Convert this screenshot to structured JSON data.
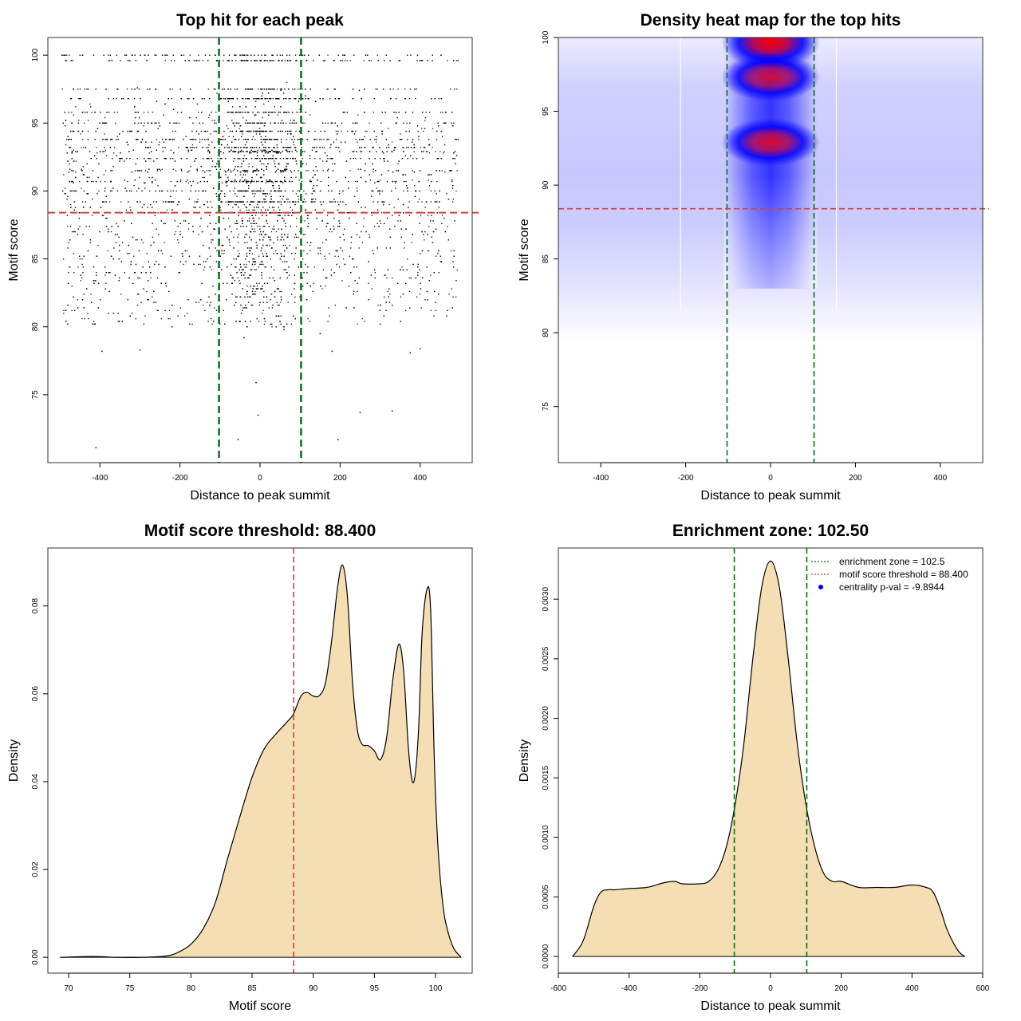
{
  "colors": {
    "green_line": "#0a6b1c",
    "red_line": "#d43f3a",
    "fill": "#f5deb3",
    "axis": "#000000",
    "point": "#000000",
    "heat_low": "#ffffff",
    "heat_mid": "#0000ff",
    "heat_high": "#ff0000",
    "legend_dot": "#0000ff"
  },
  "chart_data": [
    {
      "id": "scatter",
      "type": "scatter",
      "title": "Top hit for each peak",
      "xlabel": "Distance to peak summit",
      "ylabel": "Motif score",
      "xlim": [
        -530,
        530
      ],
      "ylim": [
        70,
        101.3
      ],
      "xticks": [
        -400,
        -200,
        0,
        200,
        400
      ],
      "yticks": [
        75,
        80,
        85,
        90,
        95,
        100
      ],
      "threshold": 88.4,
      "zone": [
        -102.5,
        102.5
      ],
      "n_points": 6000,
      "score_levels": [
        100,
        99.6,
        97.5,
        96.8,
        95.8,
        95.0,
        94.4,
        93.8,
        93.2,
        92.9,
        92.4,
        91.5,
        90.7,
        90.0,
        89.2,
        88.4
      ],
      "outliers": [
        [
          -410,
          71.1
        ],
        [
          -55,
          71.7
        ],
        [
          195,
          71.7
        ],
        [
          -5,
          73.5
        ],
        [
          250,
          73.7
        ],
        [
          330,
          73.8
        ],
        [
          -10,
          75.9
        ],
        [
          -395,
          78.2
        ],
        [
          -300,
          78.3
        ],
        [
          180,
          78.2
        ],
        [
          375,
          78.1
        ],
        [
          400,
          78.4
        ],
        [
          -220,
          80.0
        ],
        [
          -40,
          79.2
        ],
        [
          60,
          79.8
        ],
        [
          150,
          79.5
        ],
        [
          300,
          80.2
        ],
        [
          -480,
          81.6
        ],
        [
          -440,
          81.4
        ]
      ]
    },
    {
      "id": "heatmap",
      "type": "heatmap",
      "title": "Density heat map for the top hits",
      "xlabel": "Distance to peak summit",
      "ylabel": "Motif score",
      "xlim": [
        -500,
        500
      ],
      "ylim": [
        71.2,
        100
      ],
      "xticks": [
        -400,
        -200,
        0,
        200,
        400
      ],
      "yticks": [
        75,
        80,
        85,
        90,
        95,
        100
      ],
      "threshold": 88.4,
      "zone": [
        -102.5,
        102.5
      ],
      "hotspots": [
        {
          "x": 0,
          "y": 99.7,
          "intensity": 1.0
        },
        {
          "x": 0,
          "y": 97.3,
          "intensity": 0.78
        },
        {
          "x": 0,
          "y": 92.9,
          "intensity": 0.82
        }
      ]
    },
    {
      "id": "score_density",
      "type": "area",
      "title": "Motif score threshold: 88.400",
      "xlabel": "Motif score",
      "ylabel": "Density",
      "xlim": [
        68.3,
        103.0
      ],
      "ylim": [
        -0.0036,
        0.0932
      ],
      "xticks": [
        70,
        75,
        80,
        85,
        90,
        95,
        100
      ],
      "yticks": [
        0.0,
        0.02,
        0.04,
        0.06,
        0.08
      ],
      "ytick_labels": [
        "0.00",
        "0.02",
        "0.04",
        "0.06",
        "0.08"
      ],
      "threshold": 88.4,
      "x": [
        69.3,
        72.0,
        74.0,
        76.0,
        78.0,
        79.0,
        80.0,
        81.0,
        82.0,
        83.0,
        84.0,
        85.0,
        86.0,
        87.0,
        88.0,
        88.4,
        89.0,
        89.5,
        90.0,
        90.5,
        91.0,
        91.5,
        92.0,
        92.4,
        92.8,
        93.2,
        93.6,
        94.0,
        94.5,
        95.0,
        95.5,
        96.0,
        96.5,
        97.0,
        97.4,
        97.8,
        98.2,
        98.6,
        98.9,
        99.3,
        99.6,
        99.9,
        100.2,
        100.6,
        101.0,
        101.5,
        102.0,
        102.1
      ],
      "y": [
        0.0,
        0.0002,
        0.0,
        0.0,
        0.0003,
        0.0012,
        0.003,
        0.0065,
        0.0125,
        0.0225,
        0.032,
        0.041,
        0.0475,
        0.051,
        0.054,
        0.0555,
        0.0595,
        0.0603,
        0.0595,
        0.0596,
        0.0625,
        0.072,
        0.0845,
        0.0893,
        0.082,
        0.063,
        0.052,
        0.0485,
        0.0482,
        0.047,
        0.045,
        0.05,
        0.063,
        0.0713,
        0.065,
        0.047,
        0.0398,
        0.051,
        0.0735,
        0.0838,
        0.079,
        0.045,
        0.025,
        0.012,
        0.006,
        0.002,
        0.0003,
        0.0
      ]
    },
    {
      "id": "distance_density",
      "type": "area",
      "title": "Enrichment zone: 102.50",
      "xlabel": "Distance to peak summit",
      "ylabel": "Density",
      "xlim": [
        -600,
        600
      ],
      "ylim": [
        -0.00014,
        0.00343
      ],
      "xticks": [
        -600,
        -400,
        -200,
        0,
        200,
        400,
        600
      ],
      "yticks": [
        0.0,
        0.0005,
        0.001,
        0.0015,
        0.002,
        0.0025,
        0.003
      ],
      "ytick_labels": [
        "0.0000",
        "0.0005",
        "0.0010",
        "0.0015",
        "0.0020",
        "0.0025",
        "0.0030"
      ],
      "zone": [
        -102.5,
        102.5
      ],
      "x": [
        -560,
        -530,
        -500,
        -480,
        -460,
        -440,
        -400,
        -350,
        -300,
        -270,
        -250,
        -200,
        -175,
        -150,
        -125,
        -100,
        -75,
        -50,
        -25,
        0,
        25,
        50,
        75,
        100,
        125,
        150,
        175,
        200,
        250,
        300,
        350,
        400,
        440,
        460,
        480,
        500,
        530,
        550
      ],
      "y": [
        0.0,
        0.00013,
        0.00042,
        0.00054,
        0.00056,
        0.00056,
        0.00057,
        0.00058,
        0.00062,
        0.00063,
        0.00061,
        0.00061,
        0.00063,
        0.00072,
        0.00092,
        0.00128,
        0.0018,
        0.0025,
        0.0031,
        0.00332,
        0.0031,
        0.0025,
        0.0018,
        0.00128,
        0.00092,
        0.0007,
        0.00063,
        0.00063,
        0.00058,
        0.00058,
        0.00058,
        0.0006,
        0.00058,
        0.00054,
        0.0004,
        0.00022,
        5e-05,
        0.0
      ],
      "legend": [
        {
          "label": "enrichment zone = 102.5",
          "style": "green_dotted"
        },
        {
          "label": "motif score threshold = 88.400",
          "style": "red_dotted"
        },
        {
          "label": "centrality p-val = -9.8944",
          "style": "blue_dot"
        }
      ]
    }
  ]
}
